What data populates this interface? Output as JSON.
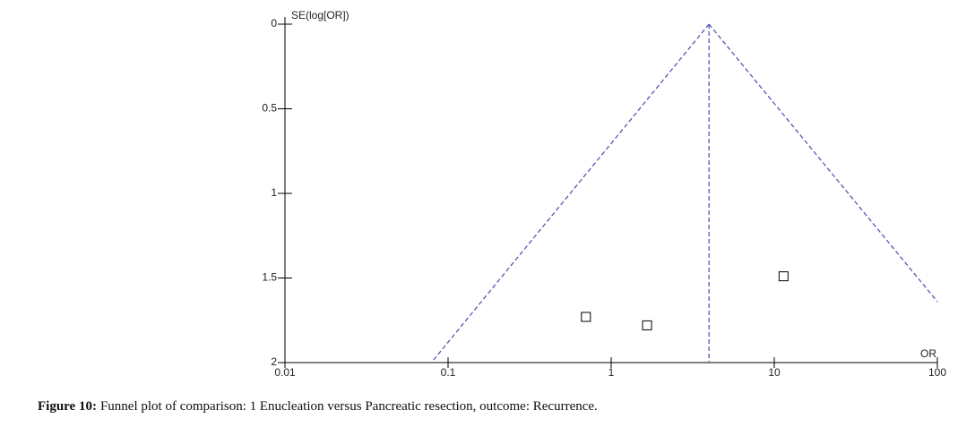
{
  "chart_data": {
    "type": "scatter",
    "y_label": "SE(log[OR])",
    "x_label": "OR",
    "caption_label": "Figure 10:",
    "caption": "Funnel plot of comparison: 1 Enucleation versus Pancreatic resection, outcome: Recurrence.",
    "x_log": true,
    "y_inverted": true,
    "xlim": [
      0.01,
      100
    ],
    "ylim": [
      0,
      2
    ],
    "xticks": [
      {
        "value": 0.01,
        "label": "0.01"
      },
      {
        "value": 0.1,
        "label": "0.1"
      },
      1,
      10,
      100
    ],
    "yticks": [
      0,
      {
        "value": 0.5,
        "label": "0.5"
      },
      1,
      {
        "value": 1.5,
        "label": "1.5"
      },
      2
    ],
    "series": [
      {
        "x": [
          0.7,
          1.66,
          11.4
        ],
        "y": [
          1.73,
          1.78,
          1.49
        ],
        "color": "#000000"
      }
    ],
    "pooled_or": 3.98,
    "funnel_color": "#5555b5",
    "funnel_left": {
      "x": [
        3.98,
        0.079
      ],
      "y": [
        0,
        2
      ]
    },
    "funnel_right": {
      "x": [
        3.98,
        100
      ],
      "y": [
        0,
        1.64
      ]
    }
  }
}
